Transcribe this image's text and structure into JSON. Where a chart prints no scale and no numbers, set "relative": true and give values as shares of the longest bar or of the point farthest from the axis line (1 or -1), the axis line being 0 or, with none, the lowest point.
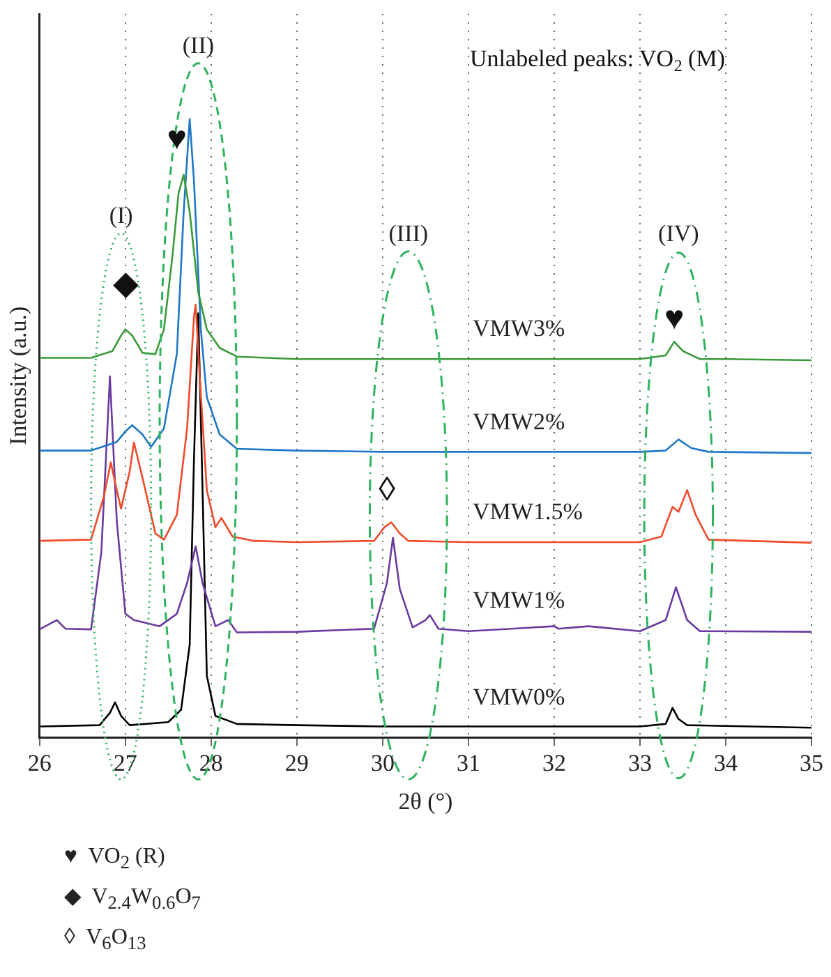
{
  "chart_data": {
    "type": "line",
    "relative": true,
    "xlabel": "2θ (°)",
    "ylabel": "Intensity (a.u.)",
    "xlim": [
      26,
      35
    ],
    "xticks": [
      26,
      27,
      28,
      29,
      30,
      31,
      32,
      33,
      34,
      35
    ],
    "grid": "x",
    "legend": false,
    "marker": "none",
    "line_style": "solid",
    "series": [
      {
        "name": "VMW3%",
        "color": "#3a9a3a",
        "x": [
          26,
          26.6,
          26.85,
          26.95,
          27.0,
          27.08,
          27.2,
          27.35,
          27.45,
          27.55,
          27.62,
          27.68,
          27.75,
          27.85,
          27.95,
          28.1,
          28.3,
          29,
          30,
          31,
          32,
          33,
          33.3,
          33.4,
          33.5,
          33.7,
          34,
          35
        ],
        "values": [
          0.614,
          0.614,
          0.625,
          0.65,
          0.66,
          0.65,
          0.622,
          0.62,
          0.66,
          0.78,
          0.88,
          0.91,
          0.85,
          0.72,
          0.66,
          0.63,
          0.616,
          0.612,
          0.612,
          0.612,
          0.612,
          0.612,
          0.618,
          0.64,
          0.625,
          0.612,
          0.612,
          0.61
        ]
      },
      {
        "name": "VMW2%",
        "color": "#1f77c8",
        "x": [
          26,
          26.6,
          26.9,
          27.0,
          27.08,
          27.2,
          27.3,
          27.45,
          27.6,
          27.68,
          27.75,
          27.8,
          27.88,
          27.95,
          28.1,
          28.3,
          29,
          30,
          31,
          32,
          33,
          33.3,
          33.45,
          33.6,
          33.8,
          35
        ],
        "values": [
          0.464,
          0.464,
          0.478,
          0.495,
          0.505,
          0.49,
          0.47,
          0.5,
          0.62,
          0.85,
          1.0,
          0.9,
          0.66,
          0.55,
          0.49,
          0.467,
          0.464,
          0.462,
          0.462,
          0.462,
          0.462,
          0.464,
          0.482,
          0.468,
          0.462,
          0.46
        ]
      },
      {
        "name": "VMW1.5%",
        "color": "#f04a2a",
        "x": [
          26,
          26.6,
          26.75,
          26.83,
          26.9,
          26.95,
          27.05,
          27.1,
          27.2,
          27.35,
          27.45,
          27.6,
          27.72,
          27.8,
          27.82,
          27.86,
          27.95,
          28.05,
          28.12,
          28.25,
          28.5,
          29,
          29.9,
          30.02,
          30.1,
          30.2,
          30.3,
          31,
          32,
          33,
          33.25,
          33.38,
          33.45,
          33.55,
          33.65,
          33.8,
          35
        ],
        "values": [
          0.318,
          0.32,
          0.39,
          0.445,
          0.4,
          0.37,
          0.43,
          0.477,
          0.42,
          0.33,
          0.32,
          0.36,
          0.5,
          0.68,
          0.7,
          0.6,
          0.4,
          0.34,
          0.355,
          0.325,
          0.318,
          0.316,
          0.318,
          0.34,
          0.348,
          0.33,
          0.318,
          0.316,
          0.316,
          0.316,
          0.325,
          0.373,
          0.365,
          0.4,
          0.36,
          0.32,
          0.315
        ]
      },
      {
        "name": "VMW1%",
        "color": "#6a3aa0",
        "x": [
          26,
          26.2,
          26.3,
          26.6,
          26.72,
          26.82,
          26.9,
          27.0,
          27.1,
          27.4,
          27.6,
          27.72,
          27.82,
          27.9,
          28.05,
          28.2,
          28.3,
          29,
          29.9,
          30.05,
          30.12,
          30.2,
          30.35,
          30.5,
          30.55,
          30.65,
          31,
          32,
          32.05,
          32.4,
          33,
          33.3,
          33.42,
          33.55,
          33.7,
          35
        ],
        "values": [
          0.175,
          0.19,
          0.176,
          0.175,
          0.3,
          0.584,
          0.35,
          0.2,
          0.19,
          0.18,
          0.2,
          0.25,
          0.309,
          0.25,
          0.18,
          0.19,
          0.17,
          0.171,
          0.176,
          0.25,
          0.323,
          0.24,
          0.178,
          0.19,
          0.198,
          0.176,
          0.172,
          0.18,
          0.176,
          0.18,
          0.172,
          0.19,
          0.243,
          0.19,
          0.172,
          0.171
        ]
      },
      {
        "name": "VMW0%",
        "color": "#000000",
        "x": [
          26,
          26.7,
          26.82,
          26.88,
          26.95,
          27.05,
          27.5,
          27.65,
          27.75,
          27.8,
          27.85,
          27.9,
          27.95,
          28.05,
          28.3,
          29,
          30,
          31,
          32,
          33,
          33.3,
          33.38,
          33.45,
          33.55,
          35
        ],
        "values": [
          0.018,
          0.02,
          0.04,
          0.057,
          0.035,
          0.02,
          0.025,
          0.045,
          0.15,
          0.45,
          0.686,
          0.4,
          0.1,
          0.035,
          0.022,
          0.02,
          0.018,
          0.018,
          0.018,
          0.018,
          0.022,
          0.048,
          0.03,
          0.02,
          0.016
        ]
      }
    ],
    "annotations": [
      "(I)",
      "(II)",
      "(III)",
      "(IV)",
      "♥",
      "◆",
      "♥",
      "◊",
      "Unlabeled peaks: VO$_{2}$ (M)",
      "♥  VO$_{2}$ (R)",
      "◆  V$_{2.4}$W$_{0.6}$O$_{7}$",
      "◊  V$_{6}$O$_{13}$"
    ]
  }
}
